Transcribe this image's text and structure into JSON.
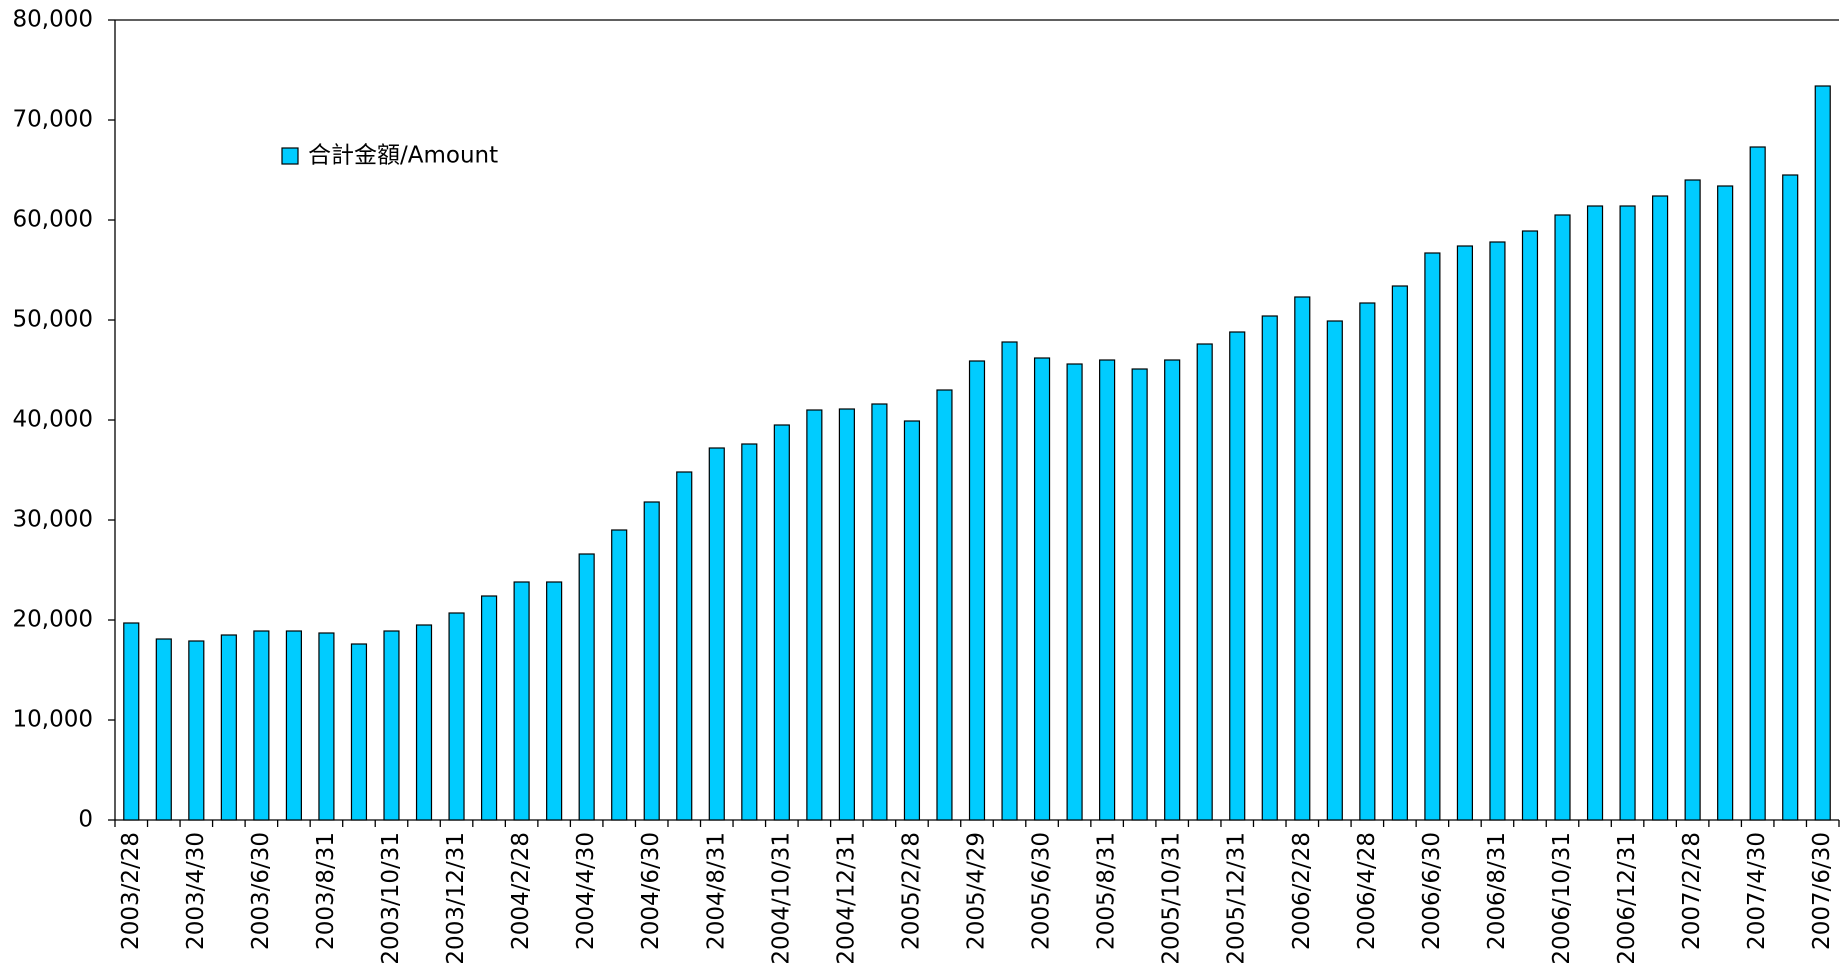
{
  "chart_data": {
    "type": "bar",
    "series": [
      {
        "name": "合計金額/Amount",
        "color": "#00ccff",
        "values": [
          19700,
          18100,
          17900,
          18500,
          18900,
          18900,
          18700,
          17600,
          18900,
          19500,
          20700,
          22400,
          23800,
          23800,
          26600,
          29000,
          31800,
          34800,
          37200,
          37600,
          39500,
          41000,
          41100,
          41600,
          39900,
          43000,
          45900,
          47800,
          46200,
          45600,
          46000,
          45100,
          46000,
          47600,
          48800,
          50400,
          52300,
          49900,
          51700,
          53400,
          56700,
          57400,
          57800,
          58900,
          60500,
          61400,
          61400,
          62400,
          64000,
          63400,
          67300,
          64500,
          73400
        ]
      }
    ],
    "categories": [
      "2003/2/28",
      null,
      "2003/4/30",
      null,
      "2003/6/30",
      null,
      "2003/8/31",
      null,
      "2003/10/31",
      null,
      "2003/12/31",
      null,
      "2004/2/28",
      null,
      "2004/4/30",
      null,
      "2004/6/30",
      null,
      "2004/8/31",
      null,
      "2004/10/31",
      null,
      "2004/12/31",
      null,
      "2005/2/28",
      null,
      "2005/4/29",
      null,
      "2005/6/30",
      null,
      "2005/8/31",
      null,
      "2005/10/31",
      null,
      "2005/12/31",
      null,
      "2006/2/28",
      null,
      "2006/4/28",
      null,
      "2006/6/30",
      null,
      "2006/8/31",
      null,
      "2006/10/31",
      null,
      "2006/12/31",
      null,
      "2007/2/28",
      null,
      "2007/4/30",
      null,
      "2007/6/30"
    ],
    "ylim": [
      0,
      80000
    ],
    "yticks": [
      0,
      {
        "value": 10000,
        "label": "10,000"
      },
      {
        "value": 20000,
        "label": "20,000"
      },
      {
        "value": 30000,
        "label": "30,000"
      },
      {
        "value": 40000,
        "label": "40,000"
      },
      {
        "value": 50000,
        "label": "50,000"
      },
      {
        "value": 60000,
        "label": "60,000"
      },
      {
        "value": 70000,
        "label": "70,000"
      },
      {
        "value": 80000,
        "label": "80,000"
      }
    ],
    "legend": "upper left"
  }
}
